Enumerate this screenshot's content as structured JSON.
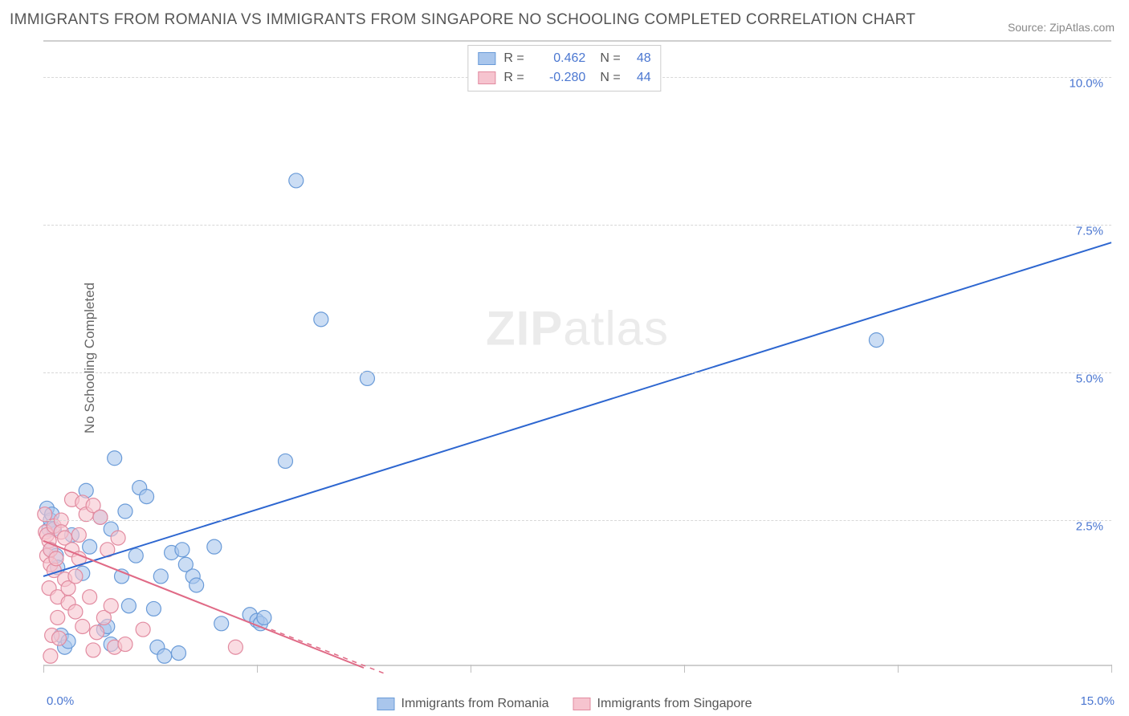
{
  "title": "IMMIGRANTS FROM ROMANIA VS IMMIGRANTS FROM SINGAPORE NO SCHOOLING COMPLETED CORRELATION CHART",
  "source_label": "Source:",
  "source_name": "ZipAtlas.com",
  "ylabel": "No Schooling Completed",
  "watermark_a": "ZIP",
  "watermark_b": "atlas",
  "chart": {
    "type": "scatter",
    "xlim": [
      0,
      15
    ],
    "ylim": [
      0,
      10.6
    ],
    "x_min_label": "0.0%",
    "x_max_label": "15.0%",
    "yticks": [
      2.5,
      5.0,
      7.5,
      10.0
    ],
    "ytick_labels": [
      "2.5%",
      "5.0%",
      "7.5%",
      "10.0%"
    ],
    "xtick_positions": [
      0,
      3,
      6,
      9,
      12,
      15
    ],
    "grid_color": "#d8d8d8",
    "background_color": "#ffffff",
    "series": [
      {
        "name": "Immigrants from Romania",
        "marker_color": "#a9c6ec",
        "marker_stroke": "#6a9bd8",
        "marker_radius": 9,
        "line_color": "#2d66d0",
        "line_width": 2,
        "r_value": "0.462",
        "n_value": "48",
        "trend": {
          "x1": 0,
          "y1": 1.55,
          "x2": 15,
          "y2": 7.2
        },
        "points": [
          [
            0.05,
            2.7
          ],
          [
            0.08,
            2.35
          ],
          [
            0.1,
            2.5
          ],
          [
            0.1,
            2.0
          ],
          [
            0.12,
            2.6
          ],
          [
            0.18,
            1.9
          ],
          [
            0.15,
            2.35
          ],
          [
            0.2,
            1.7
          ],
          [
            0.25,
            0.55
          ],
          [
            0.3,
            0.35
          ],
          [
            0.35,
            0.45
          ],
          [
            0.4,
            2.25
          ],
          [
            0.55,
            1.6
          ],
          [
            0.6,
            3.0
          ],
          [
            0.65,
            2.05
          ],
          [
            0.8,
            2.55
          ],
          [
            0.85,
            0.65
          ],
          [
            0.9,
            0.7
          ],
          [
            0.95,
            0.4
          ],
          [
            0.95,
            2.35
          ],
          [
            1.0,
            3.55
          ],
          [
            1.1,
            1.55
          ],
          [
            1.15,
            2.65
          ],
          [
            1.2,
            1.05
          ],
          [
            1.3,
            1.9
          ],
          [
            1.35,
            3.05
          ],
          [
            1.45,
            2.9
          ],
          [
            1.55,
            1.0
          ],
          [
            1.6,
            0.35
          ],
          [
            1.65,
            1.55
          ],
          [
            1.7,
            0.2
          ],
          [
            1.8,
            1.95
          ],
          [
            1.9,
            0.25
          ],
          [
            1.95,
            2.0
          ],
          [
            2.0,
            1.75
          ],
          [
            2.1,
            1.55
          ],
          [
            2.15,
            1.4
          ],
          [
            2.4,
            2.05
          ],
          [
            2.5,
            0.75
          ],
          [
            2.9,
            0.9
          ],
          [
            3.0,
            0.8
          ],
          [
            3.05,
            0.75
          ],
          [
            3.1,
            0.85
          ],
          [
            3.4,
            3.5
          ],
          [
            3.55,
            8.25
          ],
          [
            3.9,
            5.9
          ],
          [
            4.55,
            4.9
          ],
          [
            11.7,
            5.55
          ]
        ]
      },
      {
        "name": "Immigrants from Singapore",
        "marker_color": "#f6c4cf",
        "marker_stroke": "#e28ba0",
        "marker_radius": 9,
        "line_color": "#e06a86",
        "line_width": 2,
        "r_value": "-0.280",
        "n_value": "44",
        "trend": {
          "x1": 0,
          "y1": 2.15,
          "x2": 4.5,
          "y2": 0.0
        },
        "trend_dash_extend": {
          "x1": 3.2,
          "y1": 0.65,
          "x2": 4.8,
          "y2": -0.1
        },
        "points": [
          [
            0.02,
            2.6
          ],
          [
            0.03,
            2.3
          ],
          [
            0.05,
            2.25
          ],
          [
            0.05,
            1.9
          ],
          [
            0.08,
            1.35
          ],
          [
            0.08,
            2.15
          ],
          [
            0.1,
            2.0
          ],
          [
            0.1,
            1.75
          ],
          [
            0.1,
            0.2
          ],
          [
            0.12,
            0.55
          ],
          [
            0.15,
            1.65
          ],
          [
            0.15,
            2.4
          ],
          [
            0.18,
            1.85
          ],
          [
            0.2,
            1.2
          ],
          [
            0.2,
            0.85
          ],
          [
            0.22,
            0.5
          ],
          [
            0.25,
            2.5
          ],
          [
            0.25,
            2.3
          ],
          [
            0.3,
            2.2
          ],
          [
            0.3,
            1.5
          ],
          [
            0.35,
            1.35
          ],
          [
            0.35,
            1.1
          ],
          [
            0.4,
            2.85
          ],
          [
            0.4,
            2.0
          ],
          [
            0.45,
            1.55
          ],
          [
            0.45,
            0.95
          ],
          [
            0.5,
            2.25
          ],
          [
            0.5,
            1.85
          ],
          [
            0.55,
            2.8
          ],
          [
            0.55,
            0.7
          ],
          [
            0.6,
            2.6
          ],
          [
            0.65,
            1.2
          ],
          [
            0.7,
            0.3
          ],
          [
            0.7,
            2.75
          ],
          [
            0.75,
            0.6
          ],
          [
            0.8,
            2.55
          ],
          [
            0.85,
            0.85
          ],
          [
            0.9,
            2.0
          ],
          [
            0.95,
            1.05
          ],
          [
            1.0,
            0.35
          ],
          [
            1.05,
            2.2
          ],
          [
            1.15,
            0.4
          ],
          [
            1.4,
            0.65
          ],
          [
            2.7,
            0.35
          ]
        ]
      }
    ]
  },
  "legend_top": {
    "r_label": "R =",
    "n_label": "N ="
  },
  "legend_bottom": [
    {
      "swatch_fill": "#a9c6ec",
      "swatch_stroke": "#6a9bd8",
      "label": "Immigrants from Romania"
    },
    {
      "swatch_fill": "#f6c4cf",
      "swatch_stroke": "#e28ba0",
      "label": "Immigrants from Singapore"
    }
  ]
}
